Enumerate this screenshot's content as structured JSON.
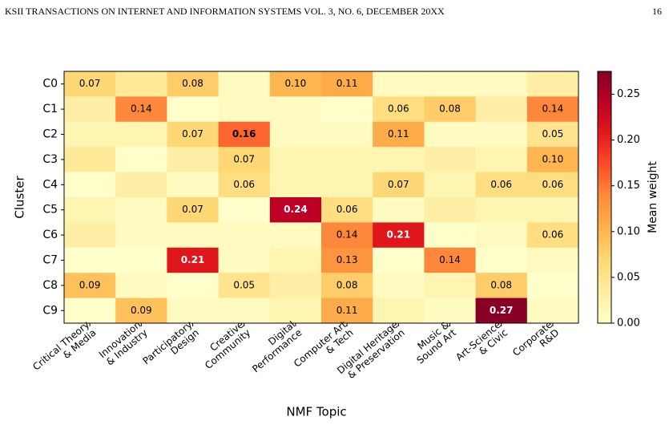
{
  "header": {
    "journal": "KSII TRANSACTIONS ON INTERNET AND INFORMATION SYSTEMS  VOL. 3, NO. 6, DECEMBER 20XX",
    "page": "16"
  },
  "chart_data": {
    "type": "heatmap",
    "xlabel": "NMF Topic",
    "ylabel": "Cluster",
    "colorbar_label": "Mean weight",
    "colormap": "YlOrRd",
    "categories": [
      "Critical Theory\n& Media",
      "Innovation\n& Industry",
      "Participatory\nDesign",
      "Creative\nCommunity",
      "Digital\nPerformance",
      "Computer Art\n& Tech",
      "Digital Heritage\n& Preservation",
      "Music &\nSound Art",
      "Art-Science\n& Civic",
      "Corporate\nR&D"
    ],
    "rows": [
      "C0",
      "C1",
      "C2",
      "C3",
      "C4",
      "C5",
      "C6",
      "C7",
      "C8",
      "C9"
    ],
    "values": [
      [
        0.07,
        0.04,
        0.08,
        0.01,
        0.1,
        0.11,
        0.01,
        0.01,
        0.01,
        0.03
      ],
      [
        0.03,
        0.14,
        0.0,
        0.01,
        0.01,
        0.0,
        0.06,
        0.08,
        0.03,
        0.14
      ],
      [
        0.02,
        0.02,
        0.07,
        0.16,
        0.01,
        0.01,
        0.11,
        0.01,
        0.01,
        0.05
      ],
      [
        0.04,
        0.0,
        0.03,
        0.07,
        0.02,
        0.02,
        0.02,
        0.03,
        0.02,
        0.1
      ],
      [
        0.0,
        0.03,
        0.01,
        0.06,
        0.02,
        0.02,
        0.07,
        0.02,
        0.06,
        0.06
      ],
      [
        0.02,
        0.01,
        0.07,
        0.0,
        0.24,
        0.06,
        0.01,
        0.03,
        0.02,
        0.02
      ],
      [
        0.03,
        0.01,
        0.01,
        0.01,
        0.01,
        0.14,
        0.21,
        0.0,
        0.01,
        0.06
      ],
      [
        0.0,
        0.0,
        0.21,
        0.01,
        0.02,
        0.13,
        0.0,
        0.14,
        0.0,
        0.01
      ],
      [
        0.09,
        0.01,
        0.0,
        0.05,
        0.03,
        0.08,
        0.01,
        0.02,
        0.08,
        0.0
      ],
      [
        0.0,
        0.09,
        0.01,
        0.01,
        0.02,
        0.11,
        0.02,
        0.01,
        0.27,
        0.01
      ]
    ],
    "value_labels": [
      [
        "0.07",
        null,
        "0.08",
        null,
        "0.10",
        "0.11",
        null,
        null,
        null,
        null
      ],
      [
        null,
        "0.14",
        null,
        null,
        null,
        null,
        "0.06",
        "0.08",
        null,
        "0.14"
      ],
      [
        null,
        null,
        "0.07",
        "0.16",
        null,
        null,
        "0.11",
        null,
        null,
        "0.05"
      ],
      [
        null,
        null,
        null,
        "0.07",
        null,
        null,
        null,
        null,
        null,
        "0.10"
      ],
      [
        null,
        null,
        null,
        "0.06",
        null,
        null,
        "0.07",
        null,
        "0.06",
        "0.06"
      ],
      [
        null,
        null,
        "0.07",
        null,
        "0.24",
        "0.06",
        null,
        null,
        null,
        null
      ],
      [
        null,
        null,
        null,
        null,
        null,
        "0.14",
        "0.21",
        null,
        null,
        "0.06"
      ],
      [
        null,
        null,
        "0.21",
        null,
        null,
        "0.13",
        null,
        "0.14",
        null,
        null
      ],
      [
        "0.09",
        null,
        null,
        "0.05",
        null,
        "0.08",
        null,
        null,
        "0.08",
        null
      ],
      [
        null,
        "0.09",
        null,
        null,
        null,
        "0.11",
        null,
        null,
        "0.27",
        null
      ]
    ],
    "clim": [
      0,
      0.275
    ],
    "cticks": [
      {
        "value": 0,
        "label": "0.00"
      },
      {
        "value": 0.05,
        "label": "0.05"
      },
      {
        "value": 0.1,
        "label": "0.10"
      },
      {
        "value": 0.15,
        "label": "0.15"
      },
      {
        "value": 0.2,
        "label": "0.20"
      },
      {
        "value": 0.25,
        "label": "0.25"
      }
    ]
  }
}
